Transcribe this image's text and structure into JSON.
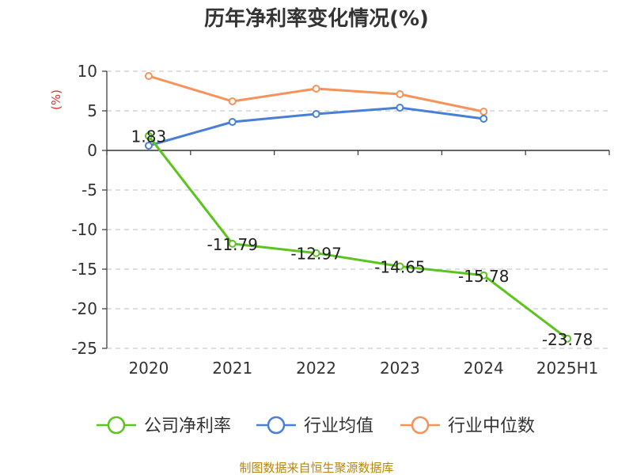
{
  "chart_data": {
    "type": "line",
    "title": "历年净利率变化情况(%)",
    "ylabel": "(%)",
    "xlabel": "",
    "categories": [
      "2020",
      "2021",
      "2022",
      "2023",
      "2024",
      "2025H1"
    ],
    "ylim": [
      -25,
      10
    ],
    "yticks": [
      10,
      5,
      0,
      -5,
      -10,
      -15,
      -20,
      -25
    ],
    "grid": true,
    "legend_position": "bottom",
    "series": [
      {
        "name": "公司净利率",
        "color": "#5cc41e",
        "values": [
          1.83,
          -11.79,
          -12.97,
          -14.65,
          -15.78,
          -23.78
        ],
        "labels": [
          "1.83",
          "-11.79",
          "-12.97",
          "-14.65",
          "-15.78",
          "-23.78"
        ]
      },
      {
        "name": "行业均值",
        "color": "#4a7fd6",
        "values": [
          0.6,
          3.6,
          4.6,
          5.4,
          4.0,
          null
        ]
      },
      {
        "name": "行业中位数",
        "color": "#f5935b",
        "values": [
          9.4,
          6.2,
          7.8,
          7.1,
          4.9,
          null
        ]
      }
    ],
    "source": "制图数据来自恒生聚源数据库"
  }
}
